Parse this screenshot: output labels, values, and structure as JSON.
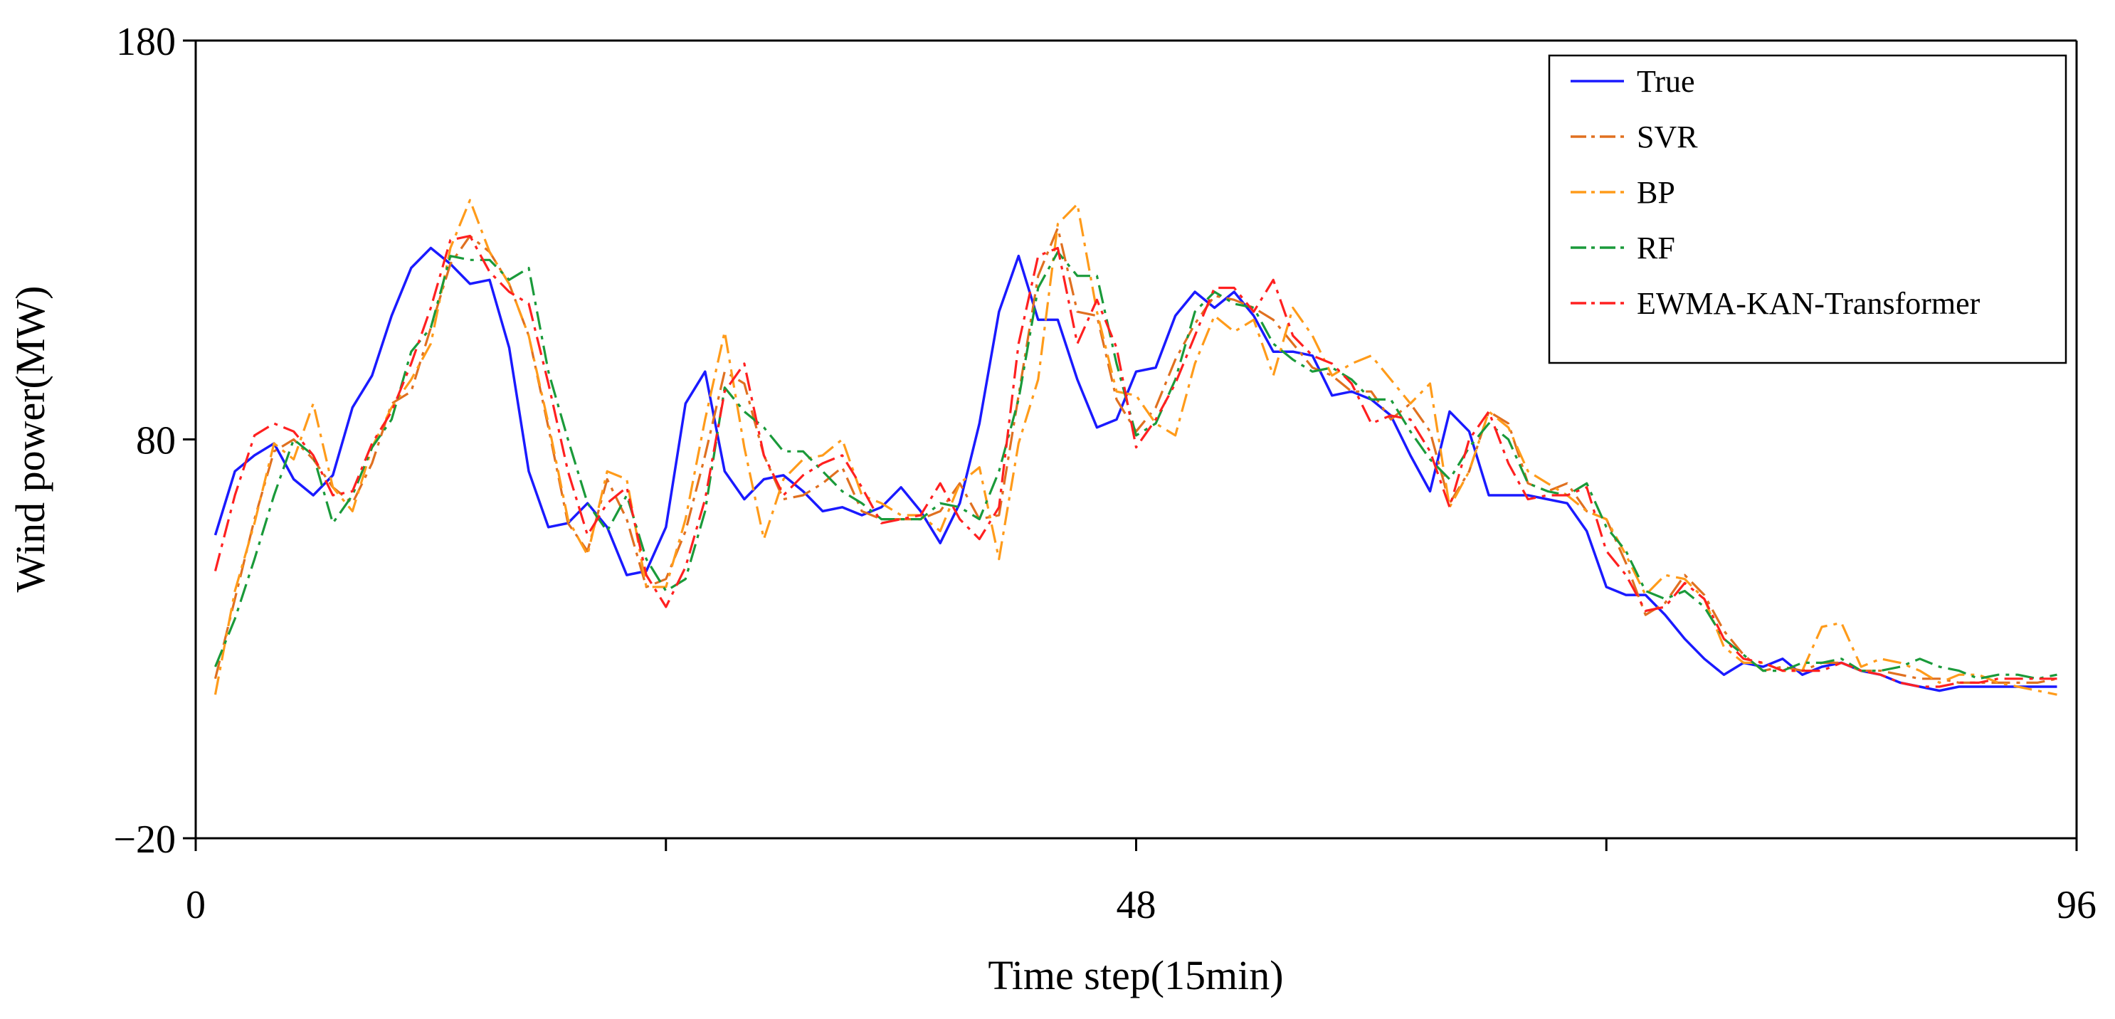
{
  "chart_data": {
    "type": "line",
    "title": "",
    "xlabel": "Time step(15min)",
    "ylabel": "Wind power(MW)",
    "xlim": [
      0,
      96
    ],
    "ylim": [
      -20,
      180
    ],
    "x_ticks": [
      0,
      24,
      48,
      72,
      96
    ],
    "x_tick_labels": [
      "0",
      "",
      "48",
      "",
      "96"
    ],
    "y_ticks": [
      -20,
      80,
      180
    ],
    "y_tick_labels": [
      "−20",
      "80",
      "180"
    ],
    "legend_position": "top-right",
    "series": [
      {
        "name": "True",
        "color": "#1a1aff",
        "style": "solid",
        "values": [
          56,
          72,
          76,
          79,
          70,
          66,
          71,
          88,
          96,
          111,
          123,
          128,
          124,
          119,
          120,
          103,
          72,
          58,
          59,
          64,
          58,
          46,
          47,
          58,
          89,
          97,
          72,
          65,
          70,
          71,
          67,
          62,
          63,
          61,
          63,
          68,
          62,
          54,
          64,
          84,
          112,
          126,
          110,
          110,
          95,
          83,
          85,
          97,
          98,
          111,
          117,
          113,
          117,
          111,
          102,
          102,
          101,
          91,
          92,
          90,
          86,
          76,
          67,
          87,
          82,
          66,
          66,
          66,
          65,
          64,
          57,
          43,
          41,
          41,
          36,
          30,
          25,
          21,
          24,
          23,
          25,
          21,
          23,
          24,
          22,
          21,
          19,
          18,
          17,
          18,
          18,
          18,
          18,
          18,
          18
        ]
      },
      {
        "name": "SVR",
        "color": "#e07020",
        "style": "dashdot",
        "values": [
          20,
          40,
          60,
          77,
          80,
          75,
          68,
          64,
          74,
          89,
          92,
          108,
          124,
          131,
          127,
          119,
          106,
          83,
          59,
          52,
          70,
          60,
          43,
          45,
          57,
          76,
          97,
          94,
          76,
          65,
          66,
          69,
          73,
          62,
          60,
          60,
          60,
          62,
          69,
          60,
          61,
          91,
          121,
          133,
          112,
          111,
          90,
          82,
          88,
          100,
          109,
          116,
          115,
          113,
          110,
          104,
          98,
          96,
          92,
          92,
          85,
          89,
          82,
          64,
          72,
          87,
          84,
          69,
          67,
          69,
          62,
          60,
          49,
          36,
          39,
          46,
          41,
          32,
          26,
          22,
          23,
          22,
          24,
          24,
          22,
          22,
          21,
          20,
          20,
          19,
          19,
          19,
          19,
          19,
          20
        ]
      },
      {
        "name": "BP",
        "color": "#ff9b1a",
        "style": "dashdot",
        "values": [
          16,
          42,
          59,
          79,
          75,
          89,
          68,
          62,
          78,
          88,
          95,
          104,
          128,
          140,
          127,
          119,
          106,
          84,
          60,
          51,
          72,
          70,
          43,
          43,
          60,
          85,
          107,
          78,
          55,
          70,
          75,
          76,
          80,
          66,
          64,
          61,
          61,
          57,
          69,
          73,
          50,
          79,
          95,
          134,
          139,
          112,
          92,
          91,
          84,
          81,
          99,
          111,
          107,
          110,
          96,
          113,
          106,
          96,
          99,
          101,
          95,
          89,
          94,
          63,
          72,
          87,
          83,
          72,
          69,
          66,
          62,
          60,
          51,
          41,
          46,
          45,
          40,
          28,
          24,
          24,
          22,
          22,
          33,
          34,
          23,
          25,
          24,
          22,
          19,
          21,
          21,
          19,
          18,
          17,
          16
        ]
      },
      {
        "name": "RF",
        "color": "#1a9a3a",
        "style": "dashdot",
        "values": [
          23,
          35,
          50,
          66,
          80,
          76,
          59,
          66,
          78,
          85,
          102,
          108,
          126,
          125,
          125,
          120,
          123,
          97,
          80,
          64,
          57,
          66,
          50,
          42,
          45,
          62,
          93,
          87,
          83,
          77,
          77,
          72,
          67,
          64,
          60,
          60,
          60,
          64,
          63,
          60,
          72,
          90,
          118,
          127,
          121,
          121,
          99,
          81,
          84,
          95,
          112,
          117,
          114,
          113,
          104,
          100,
          97,
          98,
          95,
          90,
          90,
          82,
          75,
          70,
          78,
          84,
          80,
          69,
          67,
          66,
          69,
          58,
          52,
          42,
          40,
          42,
          38,
          30,
          26,
          22,
          22,
          24,
          24,
          25,
          22,
          22,
          23,
          25,
          23,
          22,
          20,
          21,
          21,
          20,
          21
        ]
      },
      {
        "name": "EWMA-KAN-Transformer",
        "color": "#ff2020",
        "style": "dashdot",
        "values": [
          47,
          66,
          81,
          84,
          82,
          76,
          66,
          67,
          79,
          87,
          99,
          113,
          130,
          131,
          122,
          117,
          114,
          94,
          72,
          56,
          64,
          68,
          46,
          38,
          48,
          65,
          92,
          99,
          76,
          66,
          71,
          74,
          76,
          68,
          59,
          60,
          61,
          69,
          60,
          55,
          63,
          104,
          126,
          128,
          104,
          115,
          103,
          78,
          85,
          94,
          106,
          118,
          118,
          112,
          120,
          106,
          101,
          99,
          94,
          84,
          86,
          85,
          77,
          63,
          80,
          87,
          74,
          65,
          66,
          66,
          68,
          52,
          46,
          37,
          38,
          44,
          40,
          30,
          25,
          24,
          22,
          22,
          22,
          24,
          22,
          21,
          19,
          18,
          18,
          19,
          19,
          20,
          20,
          20,
          20
        ]
      }
    ]
  }
}
